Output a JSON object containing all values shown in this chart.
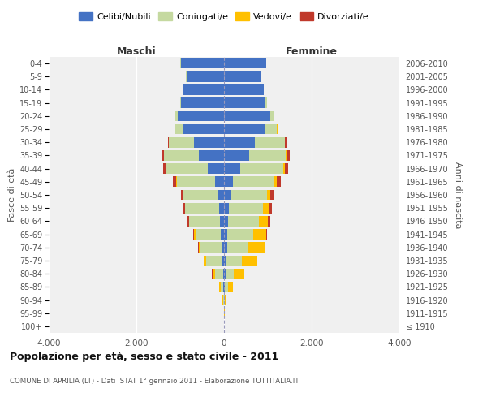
{
  "age_groups": [
    "100+",
    "95-99",
    "90-94",
    "85-89",
    "80-84",
    "75-79",
    "70-74",
    "65-69",
    "60-64",
    "55-59",
    "50-54",
    "45-49",
    "40-44",
    "35-39",
    "30-34",
    "25-29",
    "20-24",
    "15-19",
    "10-14",
    "5-9",
    "0-4"
  ],
  "birth_years": [
    "≤ 1910",
    "1911-1915",
    "1916-1920",
    "1921-1925",
    "1926-1930",
    "1931-1935",
    "1936-1940",
    "1941-1945",
    "1946-1950",
    "1951-1955",
    "1956-1960",
    "1961-1965",
    "1966-1970",
    "1971-1975",
    "1976-1980",
    "1981-1985",
    "1986-1990",
    "1991-1995",
    "1996-2000",
    "2001-2005",
    "2006-2010"
  ],
  "male_celibi": [
    2,
    2,
    5,
    10,
    20,
    40,
    55,
    70,
    90,
    110,
    130,
    200,
    370,
    580,
    680,
    920,
    1060,
    980,
    940,
    860,
    990
  ],
  "male_coniugati": [
    2,
    4,
    18,
    70,
    190,
    360,
    480,
    580,
    700,
    770,
    790,
    880,
    940,
    790,
    580,
    190,
    70,
    25,
    8,
    4,
    4
  ],
  "male_vedovi": [
    0,
    1,
    8,
    25,
    55,
    55,
    45,
    28,
    12,
    8,
    4,
    4,
    4,
    2,
    1,
    1,
    1,
    1,
    0,
    0,
    0
  ],
  "male_divorziati": [
    0,
    0,
    1,
    2,
    4,
    8,
    12,
    18,
    45,
    55,
    55,
    75,
    75,
    55,
    25,
    8,
    4,
    1,
    0,
    0,
    0
  ],
  "female_nubili": [
    1,
    2,
    8,
    15,
    30,
    55,
    70,
    80,
    95,
    115,
    145,
    210,
    370,
    570,
    700,
    940,
    1050,
    940,
    900,
    850,
    960
  ],
  "female_coniugate": [
    1,
    4,
    18,
    70,
    185,
    360,
    490,
    590,
    700,
    770,
    840,
    940,
    990,
    840,
    690,
    270,
    95,
    35,
    12,
    4,
    4
  ],
  "female_vedove": [
    2,
    4,
    28,
    115,
    240,
    340,
    370,
    290,
    210,
    140,
    75,
    55,
    25,
    16,
    8,
    4,
    2,
    1,
    0,
    0,
    0
  ],
  "female_divorziate": [
    0,
    0,
    1,
    2,
    4,
    8,
    12,
    18,
    55,
    65,
    65,
    85,
    85,
    65,
    35,
    12,
    4,
    1,
    0,
    0,
    0
  ],
  "colors_celibi": "#4472c4",
  "colors_coniugati": "#c5d9a0",
  "colors_vedovi": "#ffc000",
  "colors_divorziati": "#c0392b",
  "xlim": 4000,
  "title": "Popolazione per età, sesso e stato civile - 2011",
  "subtitle": "COMUNE DI APRILIA (LT) - Dati ISTAT 1° gennaio 2011 - Elaborazione TUTTITALIA.IT",
  "ylabel_left": "Fasce di età",
  "ylabel_right": "Anni di nascita",
  "xlabel_left": "Maschi",
  "xlabel_right": "Femmine",
  "bg_color": "#f0f0f0",
  "legend_labels": [
    "Celibi/Nubili",
    "Coniugati/e",
    "Vedovi/e",
    "Divorziati/e"
  ],
  "xtick_labels": [
    "4.000",
    "2.000",
    "0",
    "2.000",
    "4.000"
  ]
}
